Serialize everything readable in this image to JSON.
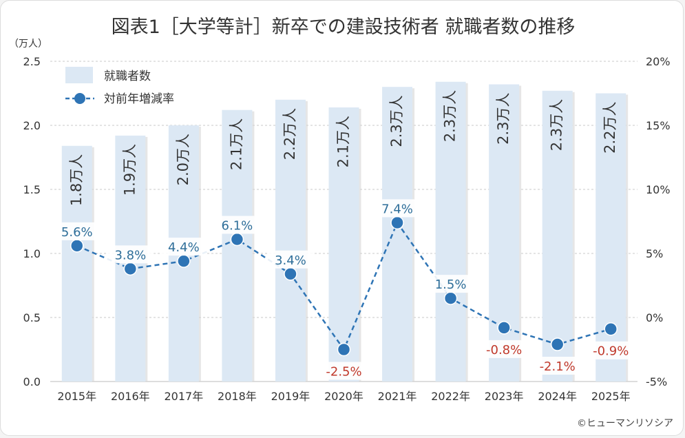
{
  "header": {
    "title": "図表1［大学等計］新卒での建設技術者 就職者数の推移",
    "unit": "（万人）",
    "credit": "©ヒューマンリソシア"
  },
  "colors": {
    "bar": "#dce8f4",
    "line": "#2e74b5",
    "positive_label": "#2e6e99",
    "negative_label": "#c0392b",
    "axis_text": "#333333"
  },
  "chart_data": {
    "type": "bar",
    "categories": [
      "2015年",
      "2016年",
      "2017年",
      "2018年",
      "2019年",
      "2020年",
      "2021年",
      "2022年",
      "2023年",
      "2024年",
      "2025年"
    ],
    "series": [
      {
        "name": "就職者数",
        "type": "bar",
        "axis": "left",
        "values": [
          1.84,
          1.92,
          2.0,
          2.12,
          2.2,
          2.14,
          2.3,
          2.34,
          2.32,
          2.27,
          2.25
        ],
        "labels": [
          "1.8万人",
          "1.9万人",
          "2.0万人",
          "2.1万人",
          "2.2万人",
          "2.1万人",
          "2.3万人",
          "2.3万人",
          "2.3万人",
          "2.3万人",
          "2.2万人"
        ]
      },
      {
        "name": "対前年増減率",
        "type": "line",
        "axis": "right",
        "values": [
          5.6,
          3.8,
          4.4,
          6.1,
          3.4,
          -2.5,
          7.4,
          1.5,
          -0.8,
          -2.1,
          -0.9
        ],
        "labels": [
          "5.6%",
          "3.8%",
          "4.4%",
          "6.1%",
          "3.4%",
          "-2.5%",
          "7.4%",
          "1.5%",
          "-0.8%",
          "-2.1%",
          "-0.9%"
        ]
      }
    ],
    "y_left": {
      "range": [
        0,
        2.5
      ],
      "ticks": [
        0,
        0.5,
        1.0,
        1.5,
        2.0,
        2.5
      ],
      "tick_labels": [
        "0.0",
        "0.5",
        "1.0",
        "1.5",
        "2.0",
        "2.5"
      ]
    },
    "y_right": {
      "range": [
        -5,
        20
      ],
      "ticks": [
        -5,
        0,
        5,
        10,
        15,
        20
      ],
      "tick_labels": [
        "-5%",
        "0%",
        "5%",
        "10%",
        "15%",
        "20%"
      ]
    },
    "grid": true,
    "legend_position": "top-left"
  }
}
